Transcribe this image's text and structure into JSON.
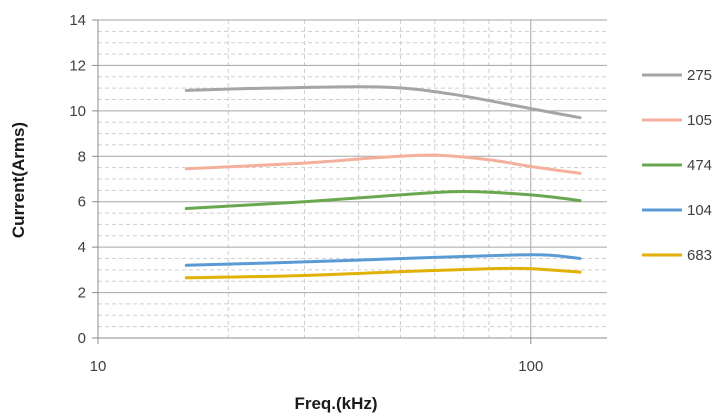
{
  "chart_data": {
    "type": "line",
    "title": "",
    "xlabel": "Freq.(kHz)",
    "ylabel": "Current(Arms)",
    "xscale": "log",
    "xlim": [
      10,
      150
    ],
    "ylim": [
      0,
      14
    ],
    "xticks": [
      "10",
      "100"
    ],
    "yticks": [
      "0",
      "2",
      "4",
      "6",
      "8",
      "10",
      "12",
      "14"
    ],
    "grid": true,
    "minor_grid": true,
    "legend_position": "right",
    "series": [
      {
        "name": "275",
        "color": "#a5a5a5",
        "points": [
          [
            16,
            10.9
          ],
          [
            25,
            11.0
          ],
          [
            45,
            11.05
          ],
          [
            65,
            10.75
          ],
          [
            100,
            10.1
          ],
          [
            130,
            9.7
          ]
        ]
      },
      {
        "name": "105",
        "color": "#f4b09c",
        "points": [
          [
            16,
            7.45
          ],
          [
            30,
            7.7
          ],
          [
            45,
            7.95
          ],
          [
            60,
            8.05
          ],
          [
            80,
            7.85
          ],
          [
            100,
            7.55
          ],
          [
            130,
            7.25
          ]
        ]
      },
      {
        "name": "474",
        "color": "#6aa84f",
        "points": [
          [
            16,
            5.7
          ],
          [
            30,
            6.0
          ],
          [
            50,
            6.3
          ],
          [
            70,
            6.45
          ],
          [
            100,
            6.3
          ],
          [
            130,
            6.05
          ]
        ]
      },
      {
        "name": "104",
        "color": "#5b9bd5",
        "points": [
          [
            16,
            3.2
          ],
          [
            30,
            3.35
          ],
          [
            60,
            3.55
          ],
          [
            90,
            3.65
          ],
          [
            110,
            3.65
          ],
          [
            130,
            3.5
          ]
        ]
      },
      {
        "name": "683",
        "color": "#e2b007",
        "points": [
          [
            16,
            2.65
          ],
          [
            30,
            2.75
          ],
          [
            55,
            2.95
          ],
          [
            80,
            3.05
          ],
          [
            100,
            3.05
          ],
          [
            130,
            2.9
          ]
        ]
      }
    ]
  }
}
